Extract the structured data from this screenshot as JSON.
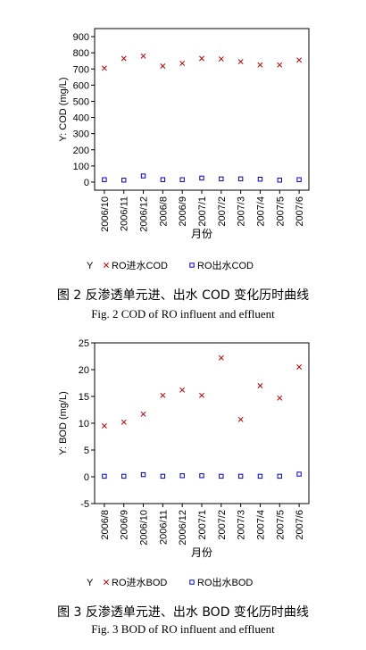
{
  "chart_data": [
    {
      "type": "scatter",
      "title": "",
      "xlabel": "月份",
      "ylabel": "Y: COD (mg/L)",
      "ylim": [
        -50,
        950
      ],
      "yticks": [
        0,
        100,
        200,
        300,
        400,
        500,
        600,
        700,
        800,
        900
      ],
      "categories": [
        "2006/10",
        "2006/11",
        "2006/12",
        "2006/8",
        "2006/9",
        "2007/1",
        "2007/2",
        "2007/3",
        "2007/4",
        "2007/5",
        "2007/6"
      ],
      "legend_title": "Y",
      "legend_placement": "bottom",
      "grid": false,
      "series": [
        {
          "name": "RO进水COD",
          "marker": "x",
          "color": "#c00000",
          "values": [
            705,
            765,
            780,
            718,
            735,
            765,
            762,
            745,
            725,
            725,
            755
          ]
        },
        {
          "name": "RO出水COD",
          "marker": "square",
          "color": "#0000cc",
          "values": [
            15,
            12,
            38,
            15,
            15,
            25,
            20,
            20,
            18,
            12,
            15
          ]
        }
      ],
      "caption_cn": "图 2  反渗透单元进、出水 COD 变化历时曲线",
      "caption_en": "Fig. 2 COD of RO influent and effluent"
    },
    {
      "type": "scatter",
      "title": "",
      "xlabel": "月份",
      "ylabel": "Y: BOD (mg/L)",
      "ylim": [
        -5,
        25
      ],
      "yticks": [
        -5,
        0,
        5,
        10,
        15,
        20,
        25
      ],
      "categories": [
        "2006/8",
        "2006/9",
        "2006/10",
        "2006/11",
        "2006/12",
        "2007/1",
        "2007/2",
        "2007/3",
        "2007/4",
        "2007/5",
        "2007/6"
      ],
      "legend_title": "Y",
      "legend_placement": "bottom",
      "grid": false,
      "series": [
        {
          "name": "RO进水BOD",
          "marker": "x",
          "color": "#c00000",
          "values": [
            9.5,
            10.2,
            11.7,
            15.2,
            16.2,
            15.2,
            22.2,
            10.7,
            17.0,
            14.7,
            20.5
          ]
        },
        {
          "name": "RO出水BOD",
          "marker": "square",
          "color": "#0000cc",
          "values": [
            0.1,
            0.1,
            0.4,
            0.1,
            0.2,
            0.2,
            0.1,
            0.1,
            0.1,
            0.1,
            0.5
          ]
        }
      ],
      "caption_cn": "图 3  反渗透单元进、出水 BOD 变化历时曲线",
      "caption_en": "Fig. 3 BOD of RO influent and effluent"
    }
  ]
}
